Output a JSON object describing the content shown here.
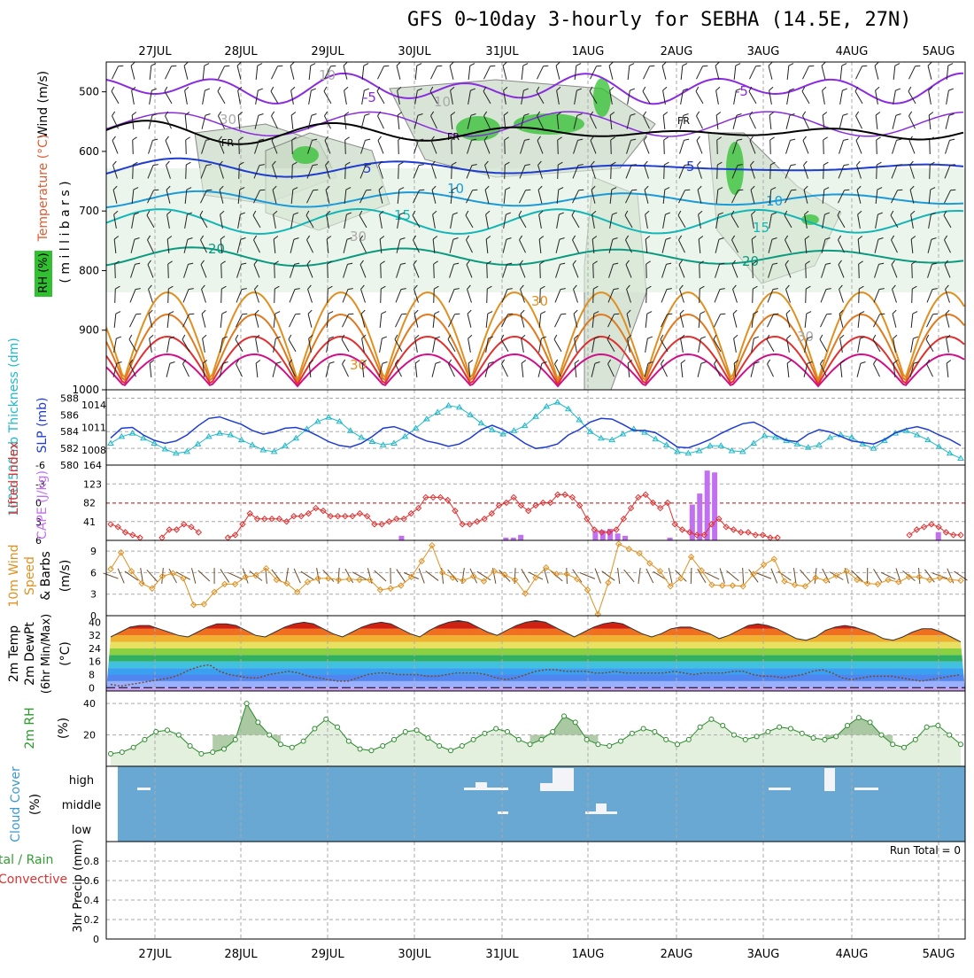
{
  "title": "GFS 0~10day 3-hourly for SEBHA (14.5E, 27N)",
  "date_labels": [
    "27JUL",
    "28JUL",
    "29JUL",
    "30JUL",
    "31JUL",
    "1AUG",
    "2AUG",
    "3AUG",
    "4AUG",
    "5AUG"
  ],
  "colors": {
    "purple": "#8a2be2",
    "blue": "#1e3cd2",
    "cyan": "#20b8c8",
    "teal": "#10b4a0",
    "orange": "#e09020",
    "red": "#e03030",
    "magenta": "#d0108a",
    "green": "#30c030",
    "cloud": "#6aa8d4",
    "rh_fill": "#dfeedd"
  },
  "chart_data": [
    {
      "type": "heatmap",
      "name": "upper-air cross-section",
      "ylabel": "(millibars)",
      "side_labels": {
        "wind": "Wind (m/s)",
        "temp": "Temperature (°C)",
        "rh": "RH (%)",
        "millibars": "( m i l l i b a r s )"
      },
      "y_ticks": [
        "500",
        "600",
        "700",
        "800",
        "900",
        "1000"
      ],
      "ylim": [
        450,
        1000
      ],
      "isotherm_labels": [
        "-5",
        "-5",
        "FR",
        "FR",
        "FR",
        "5",
        "5",
        "10",
        "10",
        "15",
        "15",
        "20",
        "20",
        "30",
        "30",
        "30",
        "10",
        "10",
        "30",
        "30"
      ]
    },
    {
      "type": "line",
      "name": "thickness / SLP",
      "ylabel_left": "1000-500mb Thickness (dm)",
      "ylabel_right": "SLP (mb)",
      "y_ticks_thickness": [
        "580",
        "582",
        "584",
        "586",
        "588"
      ],
      "y_ticks_slp": [
        "1008",
        "1011",
        "1014"
      ],
      "thickness_ylim": [
        580,
        589
      ],
      "thickness": [
        582.6,
        583.4,
        583.8,
        583.2,
        582.6,
        581.9,
        581.4,
        581.6,
        582.5,
        583.4,
        583.8,
        583.6,
        583.0,
        582.4,
        581.8,
        581.6,
        582.3,
        583.2,
        584.3,
        585.2,
        585.7,
        585.2,
        584.1,
        583.3,
        582.8,
        582.4,
        582.6,
        583.4,
        584.4,
        585.5,
        586.3,
        587.1,
        586.9,
        586.0,
        585.0,
        584.2,
        583.7,
        584.1,
        584.7,
        585.8,
        587.0,
        587.5,
        586.7,
        585.4,
        584.0,
        583.2,
        583.0,
        583.7,
        584.3,
        583.9,
        583.1,
        582.4,
        581.6,
        581.4,
        581.7,
        582.3,
        582.3,
        581.7,
        581.6,
        582.6,
        583.5,
        583.3,
        582.9,
        582.5,
        582.1,
        582.4,
        583.3,
        583.6,
        583.3,
        582.5,
        582.0,
        582.9,
        583.8,
        584.1,
        583.6,
        583.0,
        582.2,
        581.4,
        580.8
      ],
      "slp": [
        1009.6,
        1010.9,
        1011.0,
        1010.0,
        1009.3,
        1008.9,
        1009.2,
        1010.0,
        1011.2,
        1012.2,
        1012.4,
        1011.9,
        1011.4,
        1010.6,
        1010.1,
        1010.4,
        1010.9,
        1011.0,
        1010.6,
        1009.9,
        1009.1,
        1008.6,
        1008.4,
        1008.9,
        1009.8,
        1010.9,
        1011.1,
        1010.6,
        1009.8,
        1009.2,
        1008.9,
        1008.5,
        1008.8,
        1009.6,
        1010.7,
        1011.3,
        1010.7,
        1009.9,
        1008.9,
        1008.2,
        1008.4,
        1008.8,
        1010.0,
        1010.7,
        1011.7,
        1012.2,
        1012.1,
        1011.4,
        1010.6,
        1010.6,
        1010.3,
        1009.4,
        1008.4,
        1008.3,
        1008.8,
        1009.4,
        1010.2,
        1010.9,
        1011.5,
        1011.7,
        1011.0,
        1010.0,
        1009.3,
        1009.1,
        1010.1,
        1010.7,
        1010.4,
        1009.8,
        1009.2,
        1009.0,
        1008.8,
        1009.4,
        1010.3,
        1010.8,
        1011.1,
        1010.7,
        1010.0,
        1009.4,
        1008.6
      ]
    },
    {
      "type": "bar",
      "name": "lifted index / CAPE",
      "ylabel_left": "Lifted Index",
      "ylabel_right": "CAPE (J/kg)",
      "y_ticks_li": [
        "6",
        "3",
        "0",
        "-3",
        "-6"
      ],
      "y_ticks_cape": [
        "41",
        "82",
        "123",
        "164"
      ],
      "cape_ylim": [
        0,
        164
      ],
      "cape": [
        0,
        0,
        0,
        0,
        0,
        0,
        0,
        0,
        0,
        0,
        0,
        0,
        0,
        0,
        0,
        0,
        0,
        0,
        0,
        0,
        0,
        0,
        0,
        0,
        0,
        0,
        0,
        0,
        0,
        0,
        0,
        0,
        0,
        0,
        0,
        0,
        0,
        0,
        0,
        10,
        0,
        0,
        0,
        0,
        0,
        0,
        0,
        0,
        0,
        0,
        0,
        0,
        0,
        6,
        6,
        12,
        0,
        0,
        0,
        0,
        0,
        0,
        0,
        0,
        0,
        20,
        22,
        25,
        15,
        10,
        0,
        0,
        0,
        0,
        0,
        6,
        0,
        0,
        78,
        102,
        152,
        148,
        0,
        0,
        0,
        0,
        0,
        0,
        0,
        0,
        0,
        0,
        0,
        0,
        0,
        0,
        0,
        0,
        0,
        0,
        0,
        0,
        0,
        0,
        0,
        0,
        0,
        0,
        0,
        0,
        0,
        18,
        0,
        0,
        0
      ],
      "lifted_index": [
        5,
        5.5,
        6.5,
        7,
        7.5,
        8,
        8,
        7.5,
        6,
        6,
        5,
        5.5,
        6.5,
        8,
        8,
        8,
        7.5,
        7,
        5,
        3,
        4,
        4,
        4,
        4,
        4.5,
        3.5,
        3.5,
        3,
        2,
        2.5,
        3.5,
        3.5,
        3.5,
        3.5,
        3,
        3.5,
        5,
        5,
        4.5,
        4,
        4,
        3,
        2,
        0,
        0,
        0,
        0.5,
        2.5,
        5,
        5,
        4.5,
        4,
        3,
        1.5,
        1,
        0,
        1.5,
        2.5,
        1.5,
        1,
        1,
        -0.5,
        -0.5,
        0,
        1.5,
        4,
        6,
        6.5,
        6.5,
        6,
        4,
        2,
        0,
        -0.5,
        1,
        2,
        1,
        5,
        6,
        6.5,
        7,
        7,
        5,
        4,
        5.5,
        6,
        6.5,
        6.5,
        7,
        7,
        7.5,
        7.5,
        8,
        8,
        8,
        8,
        8,
        8,
        8,
        8,
        8,
        8,
        8,
        8,
        8,
        8,
        8,
        8,
        8,
        7,
        6,
        5.5,
        5,
        5.5,
        6.5,
        7,
        7
      ]
    },
    {
      "type": "line",
      "name": "10m wind",
      "ylabel": "10m Wind Speed & Barbs (m/s)",
      "y_ticks": [
        "0",
        "3",
        "6",
        "9"
      ],
      "ylim": [
        0,
        10.5
      ],
      "speed": [
        6.5,
        8.8,
        6.2,
        4.5,
        3.8,
        5.5,
        5.9,
        5.2,
        1.5,
        1.6,
        3.3,
        4.4,
        4.4,
        5.4,
        5.6,
        6.6,
        5.0,
        4.5,
        3.3,
        4.7,
        5.2,
        5.2,
        5.0,
        5.1,
        5.0,
        5.0,
        3.6,
        3.8,
        4.2,
        5.4,
        7.6,
        9.8,
        6.0,
        5.3,
        4.9,
        5.5,
        4.8,
        6.2,
        5.7,
        5.0,
        3.1,
        5.3,
        6.7,
        5.8,
        5.8,
        5.1,
        3.6,
        0.2,
        4.6,
        10.0,
        9.3,
        8.7,
        7.3,
        6.2,
        4.1,
        5.2,
        8.2,
        6.3,
        4.3,
        4.2,
        4.2,
        4.1,
        5.8,
        7.1,
        7.9,
        4.8,
        4.3,
        4.1,
        5.3,
        4.9,
        5.6,
        6.2,
        5.0,
        4.5,
        4.4,
        5.0,
        4.7,
        5.4,
        5.4,
        5.0,
        5.3,
        5.0,
        4.9
      ]
    },
    {
      "type": "area",
      "name": "2m temp / dewpoint",
      "ylabel": "2m Temp 2m DewPt (6hr Min/Max) (°C)",
      "y_ticks": [
        "0",
        "8",
        "16",
        "24",
        "32",
        "40"
      ],
      "ylim": [
        -2,
        44
      ],
      "temp": [
        31,
        34,
        37,
        38,
        38,
        36,
        34,
        32,
        31,
        34,
        37,
        39,
        39,
        38,
        35,
        32,
        31,
        34,
        37,
        39,
        40,
        39,
        36,
        33,
        31,
        34,
        37,
        39,
        40,
        39,
        36,
        33,
        31,
        35,
        38,
        40,
        41,
        40,
        37,
        34,
        32,
        35,
        38,
        40,
        41,
        40,
        37,
        34,
        31,
        34,
        37,
        39,
        40,
        39,
        36,
        33,
        31,
        33,
        36,
        37,
        37,
        35,
        33,
        30,
        32,
        35,
        38,
        39,
        38,
        36,
        33,
        30,
        29,
        31,
        35,
        37,
        38,
        37,
        35,
        33,
        30,
        29,
        31,
        34,
        36,
        36,
        34,
        31,
        28
      ],
      "dewpoint": [
        2,
        1,
        2,
        3,
        4,
        5,
        6,
        8,
        11,
        13,
        14,
        10,
        8,
        7,
        6,
        6,
        8,
        9,
        10,
        9,
        7,
        6,
        5,
        4,
        4,
        6,
        8,
        9,
        9,
        8,
        8,
        8,
        7,
        7,
        8,
        9,
        9,
        9,
        8,
        6,
        5,
        6,
        8,
        10,
        11,
        11,
        10,
        10,
        10,
        9,
        9,
        10,
        9,
        9,
        9,
        9,
        9,
        10,
        9,
        8,
        9,
        9,
        9,
        10,
        10,
        8,
        7,
        7,
        6,
        7,
        8,
        10,
        11,
        9,
        6,
        5,
        6,
        7,
        7,
        7,
        6,
        5,
        4,
        5,
        6,
        7,
        8
      ]
    },
    {
      "type": "area",
      "name": "2m RH",
      "ylabel": "2m RH (%)",
      "y_ticks": [
        "20",
        "40"
      ],
      "ylim": [
        0,
        48
      ],
      "rh": [
        8,
        9,
        12,
        17,
        22,
        23,
        20,
        13,
        8,
        9,
        11,
        17,
        40,
        28,
        20,
        14,
        12,
        16,
        24,
        30,
        25,
        16,
        11,
        10,
        13,
        17,
        22,
        23,
        18,
        13,
        10,
        13,
        17,
        21,
        24,
        22,
        17,
        14,
        17,
        22,
        32,
        28,
        17,
        14,
        13,
        16,
        21,
        24,
        22,
        17,
        14,
        17,
        25,
        30,
        26,
        20,
        17,
        19,
        22,
        25,
        24,
        21,
        18,
        17,
        19,
        26,
        31,
        28,
        20,
        14,
        12,
        17,
        25,
        26,
        20,
        14
      ],
      "rh_peaks": [
        40,
        34,
        30
      ]
    },
    {
      "type": "heatmap",
      "name": "cloud cover",
      "ylabel": "Cloud Cover (%)",
      "levels": [
        "high",
        "middle",
        "low"
      ],
      "note": "mostly clear; sparse high cloud near 31JUL and 3AUG, some middle cloud on 1AUG"
    },
    {
      "type": "bar",
      "name": "3hr precipitation",
      "ylabel": "3hr Precip (mm)",
      "legend": [
        "Total / Rain",
        "Convective"
      ],
      "y_ticks": [
        "0",
        "0.2",
        "0.4",
        "0.6",
        "0.8"
      ],
      "ylim": [
        0,
        1
      ],
      "run_total": "Run Total = 0",
      "values": []
    }
  ]
}
